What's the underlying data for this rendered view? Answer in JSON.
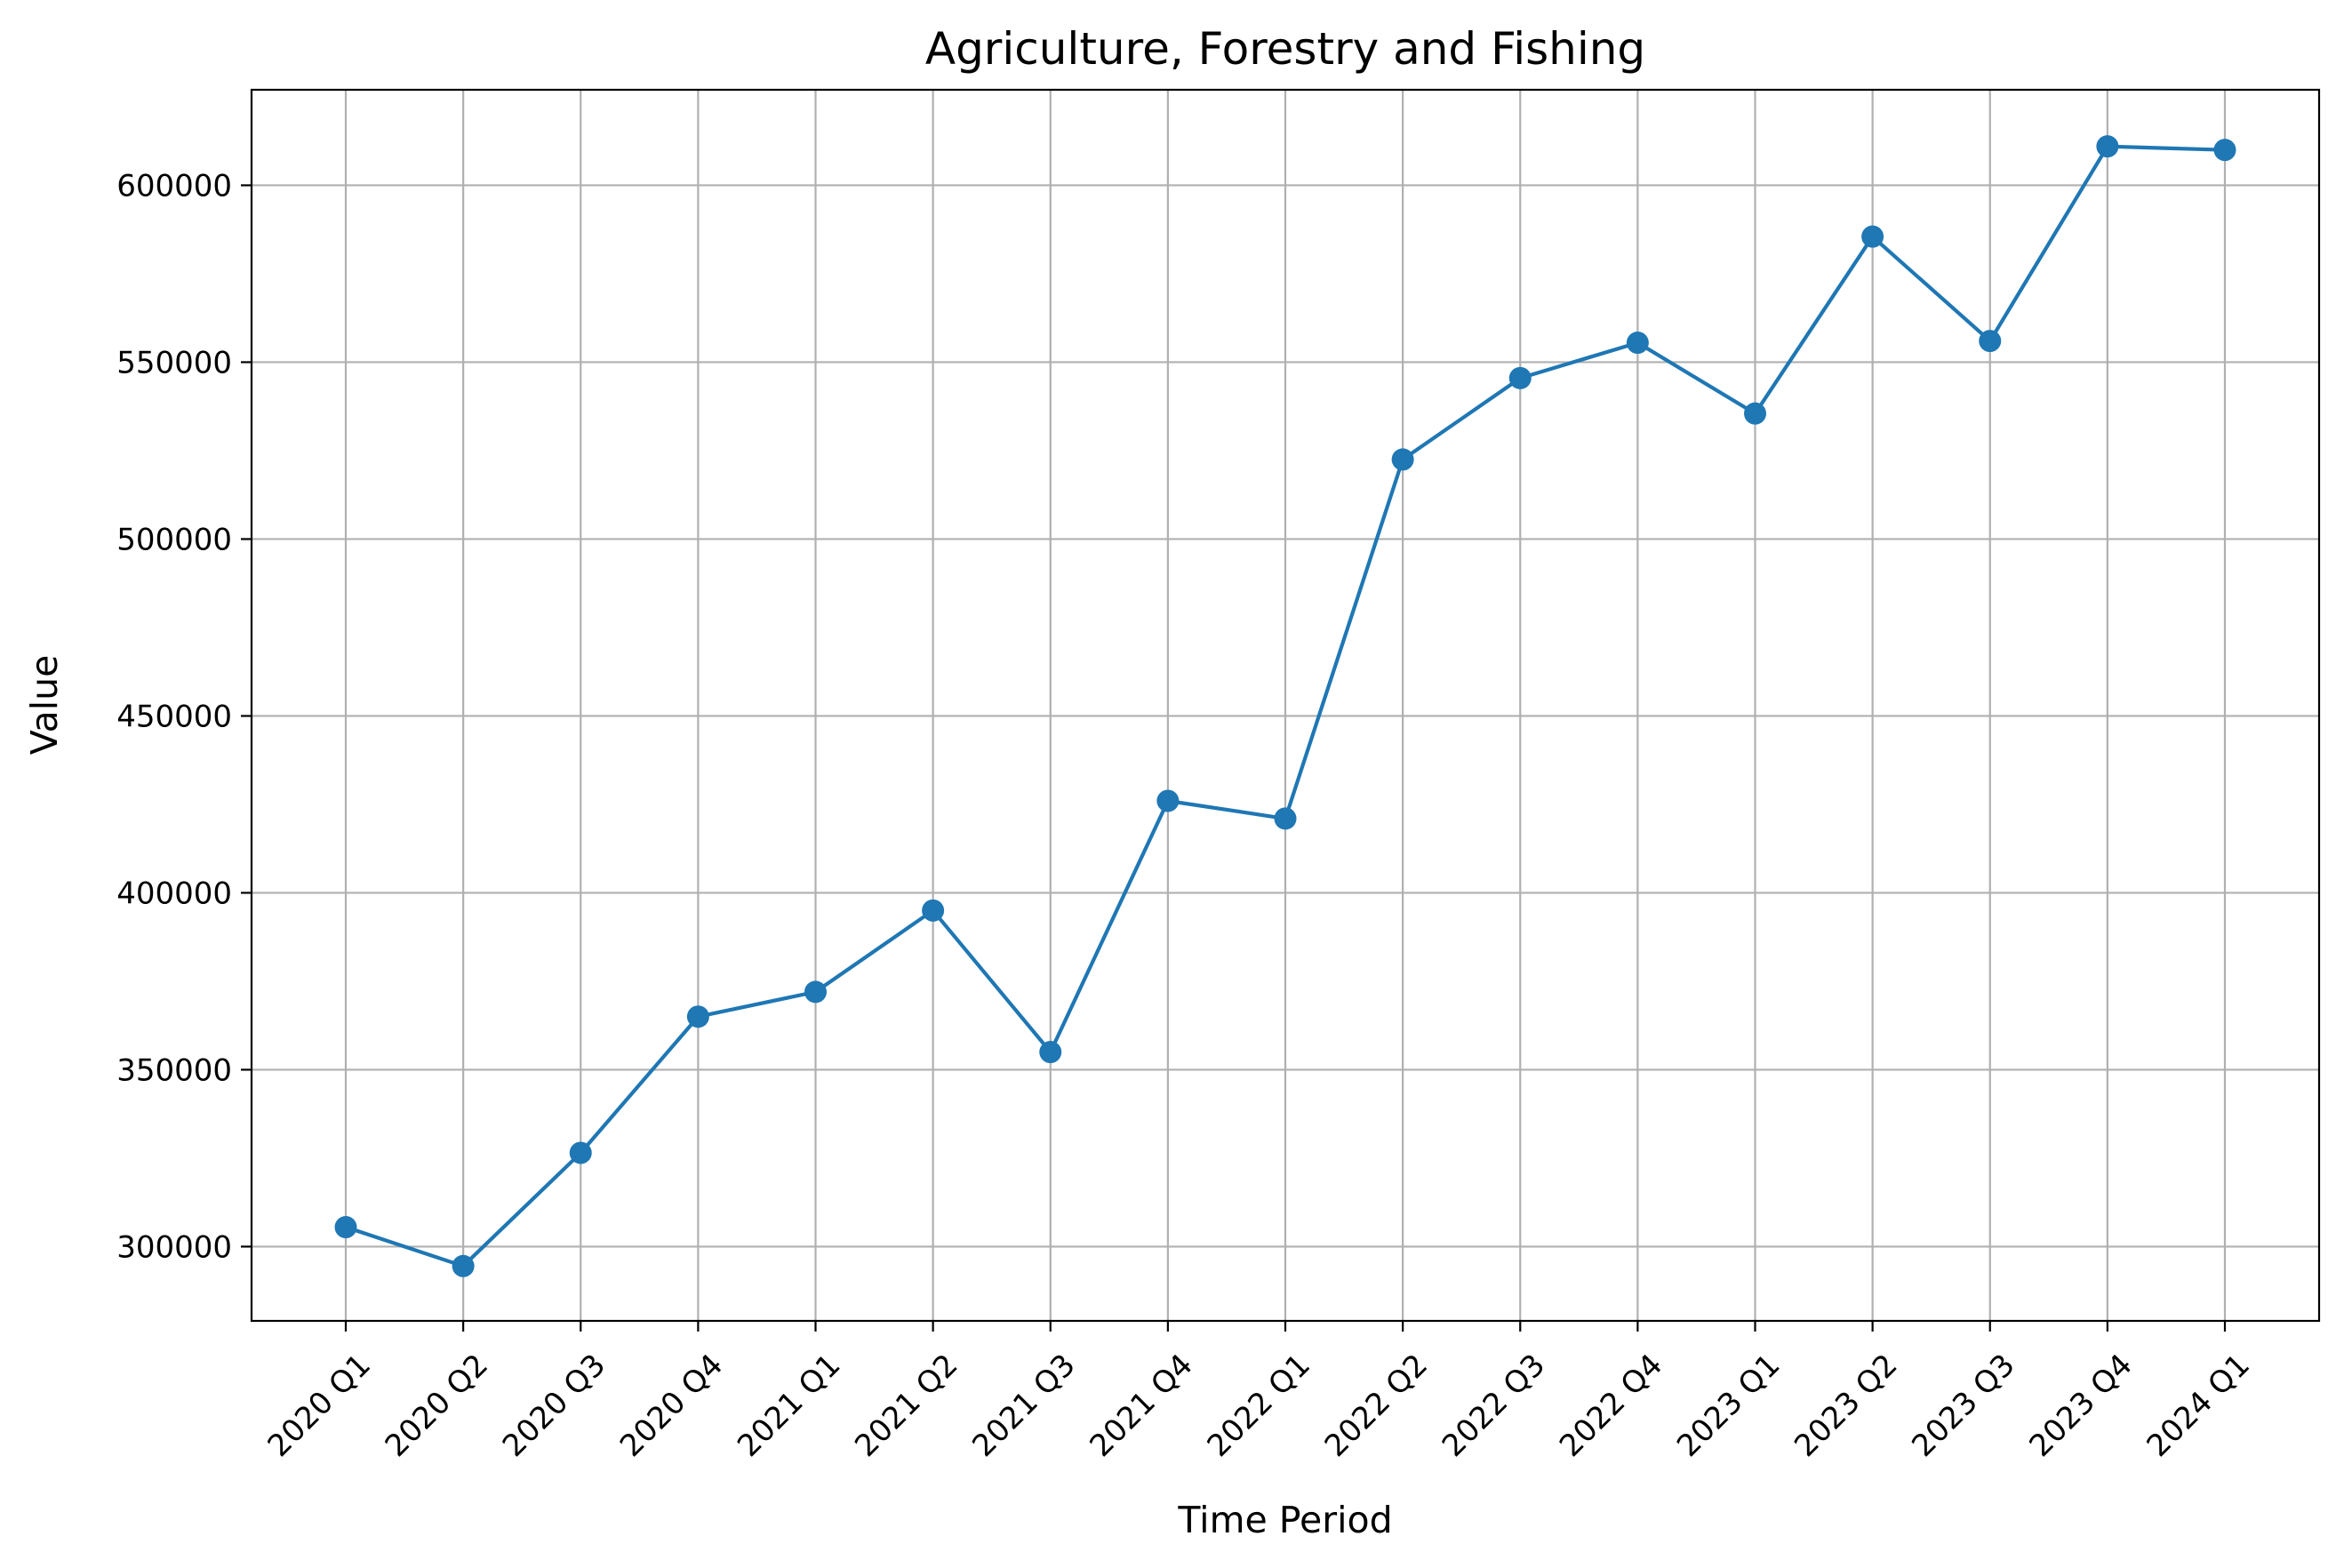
{
  "chart_data": {
    "type": "line",
    "title": "Agriculture, Forestry and Fishing",
    "xlabel": "Time Period",
    "ylabel": "Value",
    "categories": [
      "2020 Q1",
      "2020 Q2",
      "2020 Q3",
      "2020 Q4",
      "2021 Q1",
      "2021 Q2",
      "2021 Q3",
      "2021 Q4",
      "2022 Q1",
      "2022 Q2",
      "2022 Q3",
      "2022 Q4",
      "2023 Q1",
      "2023 Q2",
      "2023 Q3",
      "2023 Q4",
      "2024 Q1"
    ],
    "series": [
      {
        "values": [
          305500,
          294500,
          326500,
          365000,
          372000,
          395000,
          355000,
          426000,
          421000,
          522500,
          545500,
          555500,
          535500,
          585500,
          556000,
          611000,
          610000
        ],
        "color": "#1f77b4",
        "marker": "circle"
      }
    ],
    "yticks": [
      300000,
      350000,
      400000,
      450000,
      500000,
      550000,
      600000
    ],
    "ylim": [
      279000,
      627000
    ],
    "grid": true,
    "legend": false
  }
}
